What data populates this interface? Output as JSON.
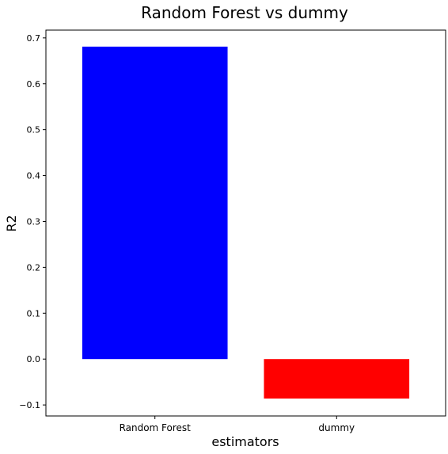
{
  "chart_data": {
    "type": "bar",
    "title": "Random Forest vs dummy",
    "xlabel": "estimators",
    "ylabel": "R2",
    "categories": [
      "Random Forest",
      "dummy"
    ],
    "values": [
      0.681,
      -0.086
    ],
    "colors": [
      "#0000ff",
      "#ff0000"
    ],
    "ylim": [
      -0.124,
      0.717
    ],
    "yticks": [
      -0.1,
      0.0,
      0.1,
      0.2,
      0.3,
      0.4,
      0.5,
      0.6,
      0.7
    ],
    "ytick_labels": [
      "−0.1",
      "0.0",
      "0.1",
      "0.2",
      "0.3",
      "0.4",
      "0.5",
      "0.6",
      "0.7"
    ],
    "grid": false,
    "legend": "none"
  }
}
